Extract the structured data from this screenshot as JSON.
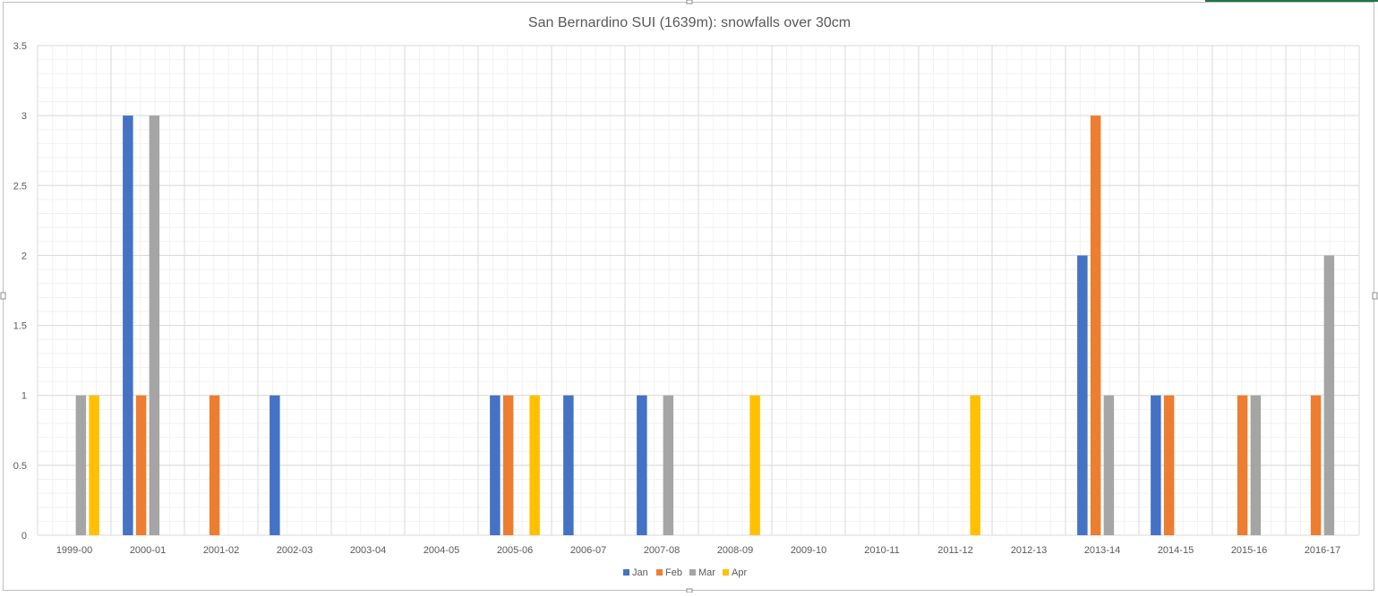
{
  "chart_data": {
    "type": "bar",
    "title": "San Bernardino SUI (1639m): snowfalls over 30cm",
    "xlabel": "",
    "ylabel": "",
    "ylim": [
      0,
      3.5
    ],
    "yticks": [
      "0",
      "0.5",
      "1",
      "1.5",
      "2",
      "2.5",
      "3",
      "3.5"
    ],
    "ytick_values": [
      0,
      0.5,
      1,
      1.5,
      2,
      2.5,
      3,
      3.5
    ],
    "grid": true,
    "legend_position": "bottom",
    "categories": [
      "1999-00",
      "2000-01",
      "2001-02",
      "2002-03",
      "2003-04",
      "2004-05",
      "2005-06",
      "2006-07",
      "2007-08",
      "2008-09",
      "2009-10",
      "2010-11",
      "2011-12",
      "2012-13",
      "2013-14",
      "2014-15",
      "2015-16",
      "2016-17"
    ],
    "series": [
      {
        "name": "Jan",
        "color": "#4472C4",
        "values": [
          0,
          3,
          0,
          1,
          0,
          0,
          1,
          1,
          1,
          0,
          0,
          0,
          0,
          0,
          2,
          1,
          0,
          0
        ]
      },
      {
        "name": "Feb",
        "color": "#ED7D31",
        "values": [
          0,
          1,
          1,
          0,
          0,
          0,
          1,
          0,
          0,
          0,
          0,
          0,
          0,
          0,
          3,
          1,
          1,
          1
        ]
      },
      {
        "name": "Mar",
        "color": "#A5A5A5",
        "values": [
          1,
          3,
          0,
          0,
          0,
          0,
          0,
          0,
          1,
          0,
          0,
          0,
          0,
          0,
          1,
          0,
          1,
          2
        ]
      },
      {
        "name": "Apr",
        "color": "#FFC000",
        "values": [
          1,
          0,
          0,
          0,
          0,
          0,
          1,
          0,
          0,
          1,
          0,
          0,
          1,
          0,
          0,
          0,
          0,
          0
        ]
      }
    ]
  }
}
